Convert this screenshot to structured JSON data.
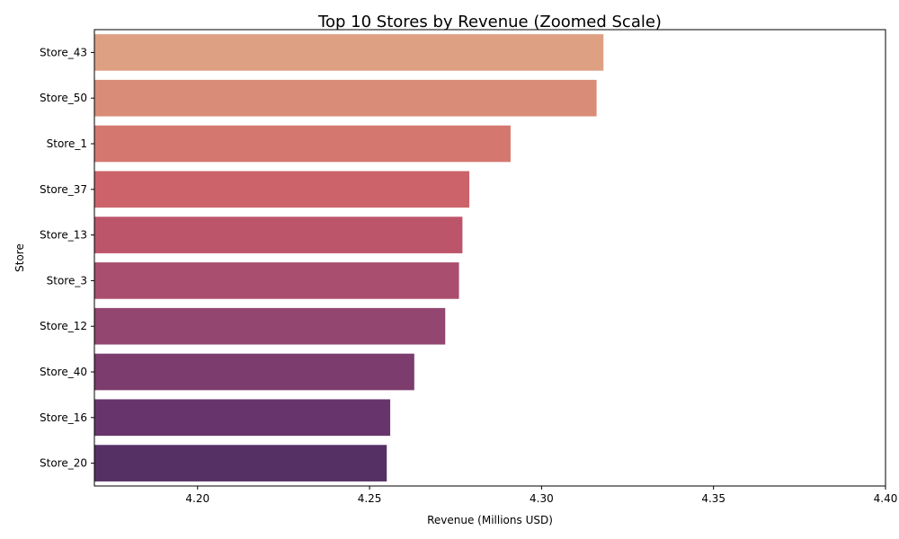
{
  "chart_data": {
    "type": "bar",
    "orientation": "horizontal",
    "title": "Top 10 Stores by Revenue (Zoomed Scale)",
    "xlabel": "Revenue (Millions USD)",
    "ylabel": "Store",
    "xlim": [
      4.17,
      4.4
    ],
    "xticks": [
      4.2,
      4.25,
      4.3,
      4.35,
      4.4
    ],
    "xtick_labels": [
      "4.20",
      "4.25",
      "4.30",
      "4.35",
      "4.40"
    ],
    "grid": false,
    "categories": [
      "Store_43",
      "Store_50",
      "Store_1",
      "Store_37",
      "Store_13",
      "Store_3",
      "Store_12",
      "Store_40",
      "Store_16",
      "Store_20"
    ],
    "values": [
      4.318,
      4.316,
      4.291,
      4.279,
      4.277,
      4.276,
      4.272,
      4.263,
      4.256,
      4.255
    ],
    "colors": [
      "#dea083",
      "#d98c77",
      "#d4786f",
      "#cc636b",
      "#bd556a",
      "#a94e6e",
      "#924670",
      "#7c3c6d",
      "#67356b",
      "#553065"
    ]
  }
}
